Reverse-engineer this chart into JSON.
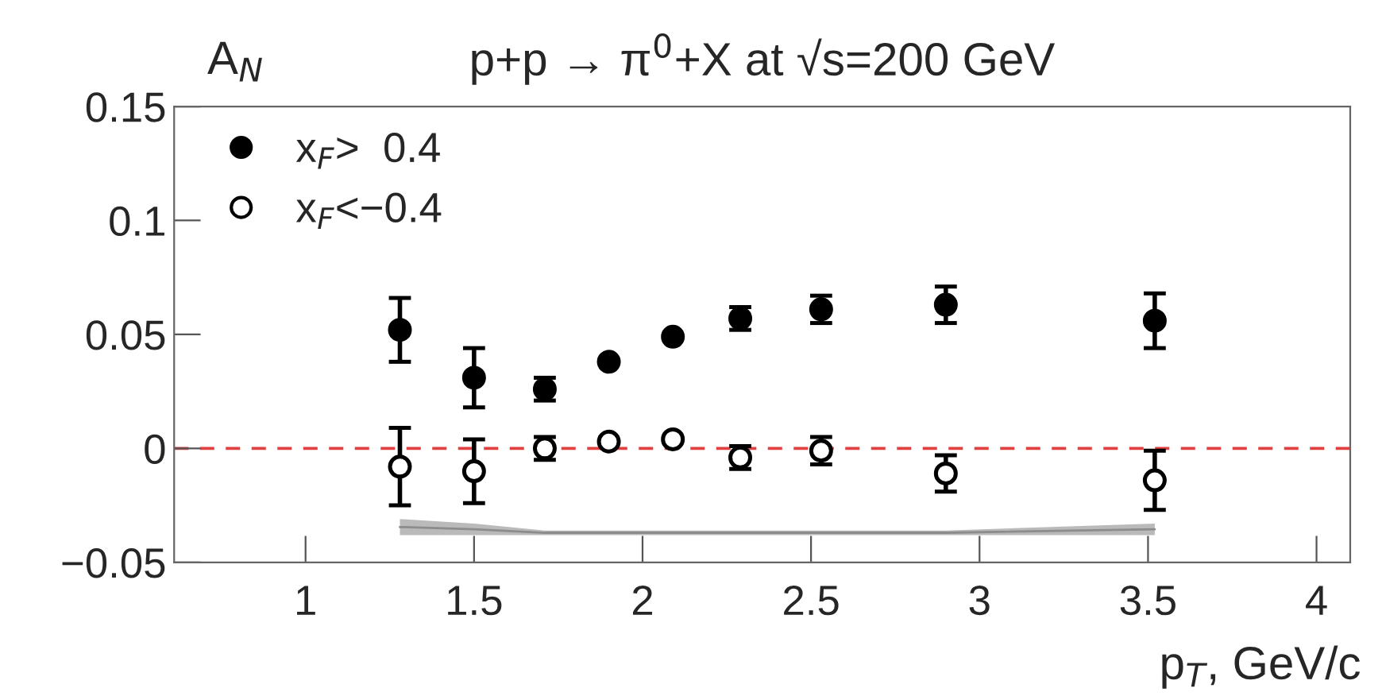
{
  "chart_data": {
    "type": "scatter",
    "title": "p+p → π$^{0}$+X at √s=200 GeV",
    "xlabel": "p$_{T}$, GeV/c",
    "ylabel": "A$_{N}$",
    "xlim": [
      0.61,
      4.1
    ],
    "xticks": [
      1,
      1.5,
      2,
      2.5,
      3,
      3.5,
      4
    ],
    "ylim": [
      -0.05,
      0.15
    ],
    "yticks": [
      {
        "value": -0.05,
        "label": "−0.05"
      },
      0,
      0.05,
      0.1,
      0.15
    ],
    "grid": false,
    "legend": "top left",
    "marker": "circle",
    "series": [
      {
        "name": "x$_{F}$>  0.4",
        "color": "#000000",
        "x": [
          1.28,
          1.5,
          1.71,
          1.9,
          2.09,
          2.29,
          2.53,
          2.9,
          3.52
        ],
        "values": [
          0.052,
          0.031,
          0.026,
          0.038,
          0.049,
          0.057,
          0.061,
          0.063,
          0.056
        ],
        "errors": [
          0.014,
          0.013,
          0.005,
          null,
          null,
          0.005,
          0.006,
          0.008,
          0.012
        ]
      },
      {
        "name": "x$_{F}$<−0.4",
        "color": "#000000",
        "x": [
          1.28,
          1.5,
          1.71,
          1.9,
          2.09,
          2.29,
          2.53,
          2.9,
          3.52
        ],
        "values": [
          -0.008,
          -0.01,
          0.0,
          0.003,
          0.004,
          -0.004,
          -0.001,
          -0.011,
          -0.014
        ],
        "errors": [
          0.017,
          0.014,
          0.005,
          null,
          null,
          0.005,
          0.006,
          0.008,
          0.013
        ]
      },
      {
        "type": "line",
        "marker": "none",
        "color": "#8c8c8c",
        "x": [
          1.28,
          1.5,
          1.71,
          2.9,
          3.52
        ],
        "values": [
          -0.0345,
          -0.0355,
          -0.037,
          -0.037,
          -0.0355
        ],
        "lower": [
          -0.038,
          -0.038,
          -0.038,
          -0.038,
          -0.038
        ],
        "upper": [
          -0.031,
          -0.033,
          -0.036,
          -0.036,
          -0.033
        ]
      }
    ],
    "ref_lines": [
      {
        "axis": "y",
        "value": 0,
        "color": "#e04040",
        "line_style": "dashed"
      }
    ]
  }
}
